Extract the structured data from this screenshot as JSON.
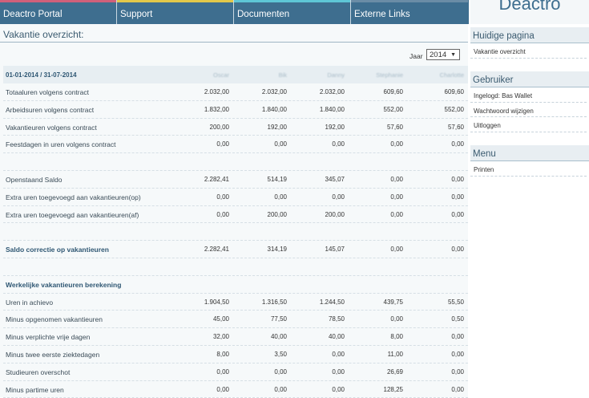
{
  "nav": {
    "items": [
      {
        "label": "Deactro Portal",
        "accent": "#d0607a"
      },
      {
        "label": "Support",
        "accent": "#e2c84a"
      },
      {
        "label": "Documenten",
        "accent": "#5ec6d6"
      },
      {
        "label": "Externe Links",
        "accent": "#6a8ca6"
      }
    ]
  },
  "brand": "Deactro",
  "page": {
    "title": "Vakantie overzicht:",
    "year_label": "Jaar",
    "year_value": "2014"
  },
  "table": {
    "period": "01-01-2014 / 31-07-2014",
    "columns": [
      "Oscar",
      "Bik",
      "Danny",
      "Stephanie",
      "Charlotte"
    ],
    "rows": [
      {
        "label": "Totaaluren volgens contract",
        "values": [
          "2.032,00",
          "2.032,00",
          "2.032,00",
          "609,60",
          "609,60"
        ]
      },
      {
        "label": "Arbeidsuren volgens contract",
        "values": [
          "1.832,00",
          "1.840,00",
          "1.840,00",
          "552,00",
          "552,00"
        ]
      },
      {
        "label": "Vakantieuren volgens contract",
        "values": [
          "200,00",
          "192,00",
          "192,00",
          "57,60",
          "57,60"
        ]
      },
      {
        "label": "Feestdagen in uren volgens contract",
        "values": [
          "0,00",
          "0,00",
          "0,00",
          "0,00",
          "0,00"
        ]
      },
      {
        "label": "",
        "values": [
          "",
          "",
          "",
          "",
          ""
        ]
      },
      {
        "label": "Openstaand Saldo",
        "values": [
          "2.282,41",
          "514,19",
          "345,07",
          "0,00",
          "0,00"
        ]
      },
      {
        "label": "Extra uren toegevoegd aan vakantieuren(op)",
        "values": [
          "0,00",
          "0,00",
          "0,00",
          "0,00",
          "0,00"
        ]
      },
      {
        "label": "Extra uren toegevoegd aan vakantieuren(af)",
        "values": [
          "0,00",
          "200,00",
          "200,00",
          "0,00",
          "0,00"
        ]
      },
      {
        "label": "",
        "values": [
          "",
          "",
          "",
          "",
          ""
        ]
      },
      {
        "label": "Saldo correctie op vakantieuren",
        "values": [
          "2.282,41",
          "314,19",
          "145,07",
          "0,00",
          "0,00"
        ],
        "bold": true
      },
      {
        "label": "",
        "values": [
          "",
          "",
          "",
          "",
          ""
        ]
      },
      {
        "label": "Werkelijke vakantieuren berekening",
        "values": [
          "",
          "",
          "",
          "",
          ""
        ],
        "bold": true
      },
      {
        "label": "Uren in achievo",
        "values": [
          "1.904,50",
          "1.316,50",
          "1.244,50",
          "439,75",
          "55,50"
        ]
      },
      {
        "label": "Minus opgenomen vakantieuren",
        "values": [
          "45,00",
          "77,50",
          "78,50",
          "0,00",
          "0,50"
        ]
      },
      {
        "label": "Minus verplichte vrije dagen",
        "values": [
          "32,00",
          "40,00",
          "40,00",
          "8,00",
          "0,00"
        ]
      },
      {
        "label": "Minus twee eerste ziektedagen",
        "values": [
          "8,00",
          "3,50",
          "0,00",
          "11,00",
          "0,00"
        ]
      },
      {
        "label": "Studieuren overschot",
        "values": [
          "0,00",
          "0,00",
          "0,00",
          "26,69",
          "0,00"
        ]
      },
      {
        "label": "Minus partime uren",
        "values": [
          "0,00",
          "0,00",
          "0,00",
          "128,25",
          "0,00"
        ]
      }
    ]
  },
  "sidebar": {
    "current": {
      "title": "Huidige pagina",
      "items": [
        "Vakantie overzicht"
      ]
    },
    "user": {
      "title": "Gebruiker",
      "items": [
        "Ingelogd: Bas Wallet",
        "Wachtwoord wijzigen",
        "Uitloggen"
      ]
    },
    "menu": {
      "title": "Menu",
      "items": [
        "Printen"
      ]
    }
  }
}
